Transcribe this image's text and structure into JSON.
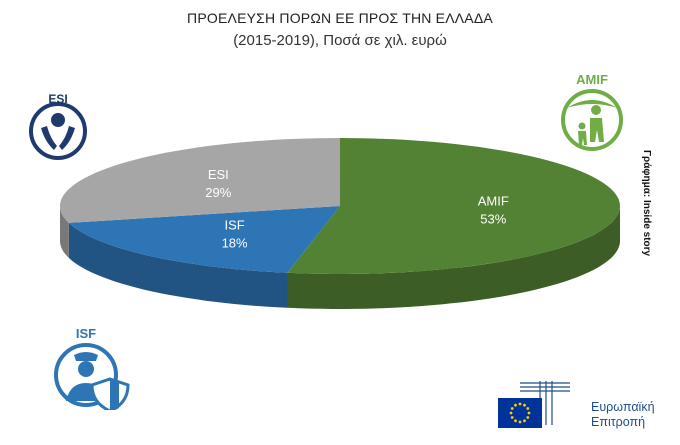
{
  "title": "ΠΡΟΕΛΕΥΣΗ ΠΟΡΩΝ ΕΕ ΠΡΟΣ ΤΗΝ ΕΛΛΑΔΑ",
  "subtitle": "(2015-2019), Ποσά σε χιλ. ευρώ",
  "credit": "Γράφημα: Inside story",
  "icons": {
    "esi": "ESI",
    "amif": "AMIF",
    "isf": "ISF"
  },
  "logo": {
    "name": "eu-flag-logo",
    "line1": "Ευρωπαϊκή",
    "line2": "Επιτροπή"
  },
  "colors": {
    "AMIF": "#548235",
    "ISF": "#2E75B6",
    "ESI": "#A6A6A6",
    "background": "#FFFFFF"
  },
  "chart_data": {
    "type": "pie",
    "style": "3d",
    "slices": [
      {
        "label": "AMIF",
        "value": 53,
        "pct_label": "53%"
      },
      {
        "label": "ISF",
        "value": 18,
        "pct_label": "18%"
      },
      {
        "label": "ESI",
        "value": 29,
        "pct_label": "29%"
      }
    ]
  }
}
